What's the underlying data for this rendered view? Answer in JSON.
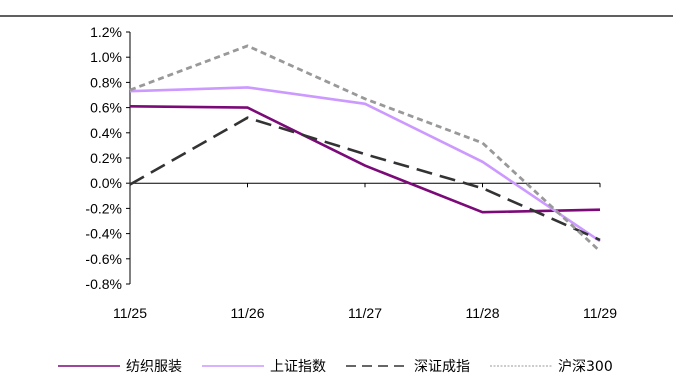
{
  "chart_data": {
    "type": "line",
    "title": "",
    "xlabel": "",
    "ylabel": "",
    "categories": [
      "11/25",
      "11/26",
      "11/27",
      "11/28",
      "11/29"
    ],
    "ylim": [
      -0.8,
      1.2
    ],
    "y_ticks": [
      "1.2%",
      "1.0%",
      "0.8%",
      "0.6%",
      "0.4%",
      "0.2%",
      "0.0%",
      "-0.2%",
      "-0.4%",
      "-0.6%",
      "-0.8%"
    ],
    "y_tick_values": [
      1.2,
      1.0,
      0.8,
      0.6,
      0.4,
      0.2,
      0.0,
      -0.2,
      -0.4,
      -0.6,
      -0.8
    ],
    "unit": "%",
    "grid": false,
    "legend_position": "bottom",
    "series": [
      {
        "name": "纺织服装",
        "values": [
          0.61,
          0.6,
          0.14,
          -0.23,
          -0.21
        ],
        "color": "#7b0a78",
        "dash": "solid"
      },
      {
        "name": "上证指数",
        "values": [
          0.73,
          0.76,
          0.63,
          0.17,
          -0.46
        ],
        "color": "#cc99ff",
        "dash": "solid"
      },
      {
        "name": "深证成指",
        "values": [
          -0.01,
          0.52,
          0.23,
          -0.04,
          -0.45
        ],
        "color": "#333333",
        "dash": "long-dash"
      },
      {
        "name": "沪深300",
        "values": [
          0.74,
          1.09,
          0.67,
          0.32,
          -0.54
        ],
        "color": "#999999",
        "dash": "short-dash"
      }
    ]
  }
}
